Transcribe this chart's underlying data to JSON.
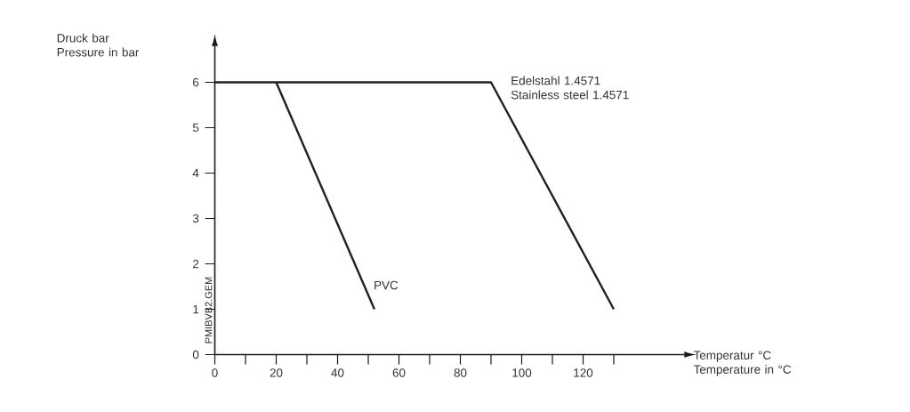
{
  "chart_data": {
    "type": "line",
    "xlabel": "Temperatur °C Temperature in °C",
    "ylabel": "Druck bar Pressure in bar",
    "series": [
      {
        "name": "Edelstahl 1.4571 Stainless steel 1.4571",
        "color": "#231f20",
        "x": [
          0,
          90,
          130
        ],
        "values": [
          6,
          6,
          1
        ]
      },
      {
        "name": "PVC",
        "color": "#231f20",
        "x": [
          20,
          52
        ],
        "values": [
          6,
          1
        ]
      }
    ],
    "xlim": [
      0,
      153
    ],
    "ylim": [
      0,
      6.8
    ],
    "xticks": [
      0,
      {
        "value": 10,
        "label": null
      },
      20,
      {
        "value": 30,
        "label": null
      },
      40,
      {
        "value": 50,
        "label": null
      },
      60,
      {
        "value": 70,
        "label": null
      },
      80,
      {
        "value": 90,
        "label": null
      },
      100,
      {
        "value": 110,
        "label": null
      },
      120,
      {
        "value": 130,
        "label": null
      }
    ],
    "yticks": [
      0,
      1,
      2,
      3,
      4,
      5,
      6
    ],
    "grid": false,
    "legend": false,
    "marker": "none",
    "line_style": "solid",
    "annotations": [
      "PMIBVB2.GEM"
    ]
  }
}
